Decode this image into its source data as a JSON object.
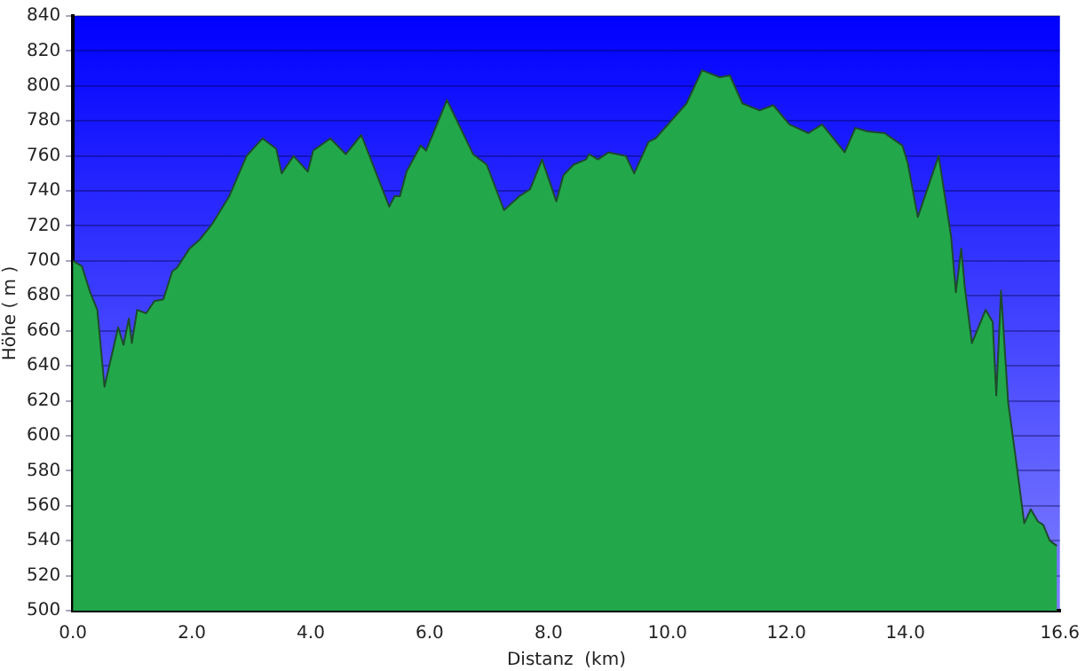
{
  "chart_data": {
    "type": "area",
    "xlabel": "Distanz  (km)",
    "ylabel": "Höhe ( m )",
    "grid": "y",
    "legend": false,
    "marker": "none",
    "x": [
      0,
      0.15,
      0.29,
      0.41,
      0.53,
      0.76,
      0.85,
      0.94,
      0.99,
      1.08,
      1.23,
      1.37,
      1.52,
      1.67,
      1.75,
      1.96,
      2.13,
      2.34,
      2.63,
      2.92,
      3.19,
      3.42,
      3.51,
      3.71,
      3.95,
      4.04,
      4.33,
      4.59,
      4.85,
      5.32,
      5.41,
      5.5,
      5.61,
      5.85,
      5.94,
      6.29,
      6.73,
      6.96,
      7.25,
      7.51,
      7.69,
      7.89,
      8.13,
      8.25,
      8.42,
      8.63,
      8.68,
      8.83,
      9.01,
      9.3,
      9.44,
      9.68,
      9.8,
      10.32,
      10.58,
      10.88,
      11.05,
      11.26,
      11.55,
      11.78,
      12.05,
      12.37,
      12.6,
      12.98,
      13.16,
      13.36,
      13.65,
      13.95,
      14.04,
      14.21,
      14.56,
      14.77,
      14.85,
      14.94,
      15.0,
      15.12,
      15.35,
      15.47,
      15.53,
      15.61,
      15.73,
      15.85,
      16.0,
      16.11,
      16.23,
      16.32,
      16.43,
      16.55
    ],
    "series": [
      {
        "color": "#22a84a",
        "values": [
          700,
          697,
          682,
          672,
          628,
          662,
          652,
          667,
          653,
          672,
          670,
          677,
          678,
          694,
          696,
          707,
          712,
          721,
          737,
          760,
          770,
          764,
          750,
          760,
          751,
          763,
          770,
          761,
          772,
          731,
          737,
          737,
          751,
          766,
          763,
          792,
          761,
          755,
          729,
          737,
          741,
          758,
          734,
          749,
          755,
          758,
          761,
          758,
          762,
          760,
          750,
          768,
          770,
          790,
          809,
          805,
          806,
          790,
          786,
          789,
          778,
          773,
          778,
          762,
          776,
          774,
          773,
          766,
          756,
          725,
          760,
          714,
          682,
          707,
          685,
          653,
          672,
          665,
          623,
          683,
          619,
          589,
          550,
          558,
          551,
          549,
          540,
          537
        ]
      }
    ],
    "xlim": [
      0,
      16.6
    ],
    "xticks": [
      {
        "value": 0,
        "label": "0.0"
      },
      {
        "value": 2,
        "label": "2.0"
      },
      {
        "value": 4,
        "label": "4.0"
      },
      {
        "value": 6,
        "label": "6.0"
      },
      {
        "value": 8,
        "label": "8.0"
      },
      {
        "value": 10,
        "label": "10.0"
      },
      {
        "value": 12,
        "label": "12.0"
      },
      {
        "value": 14,
        "label": "14.0"
      },
      {
        "value": 16.6,
        "label": "16.6"
      }
    ],
    "ylim": [
      500,
      840
    ],
    "yticks": [
      500,
      520,
      540,
      560,
      580,
      600,
      620,
      640,
      660,
      680,
      700,
      720,
      740,
      760,
      780,
      800,
      820,
      840
    ]
  }
}
